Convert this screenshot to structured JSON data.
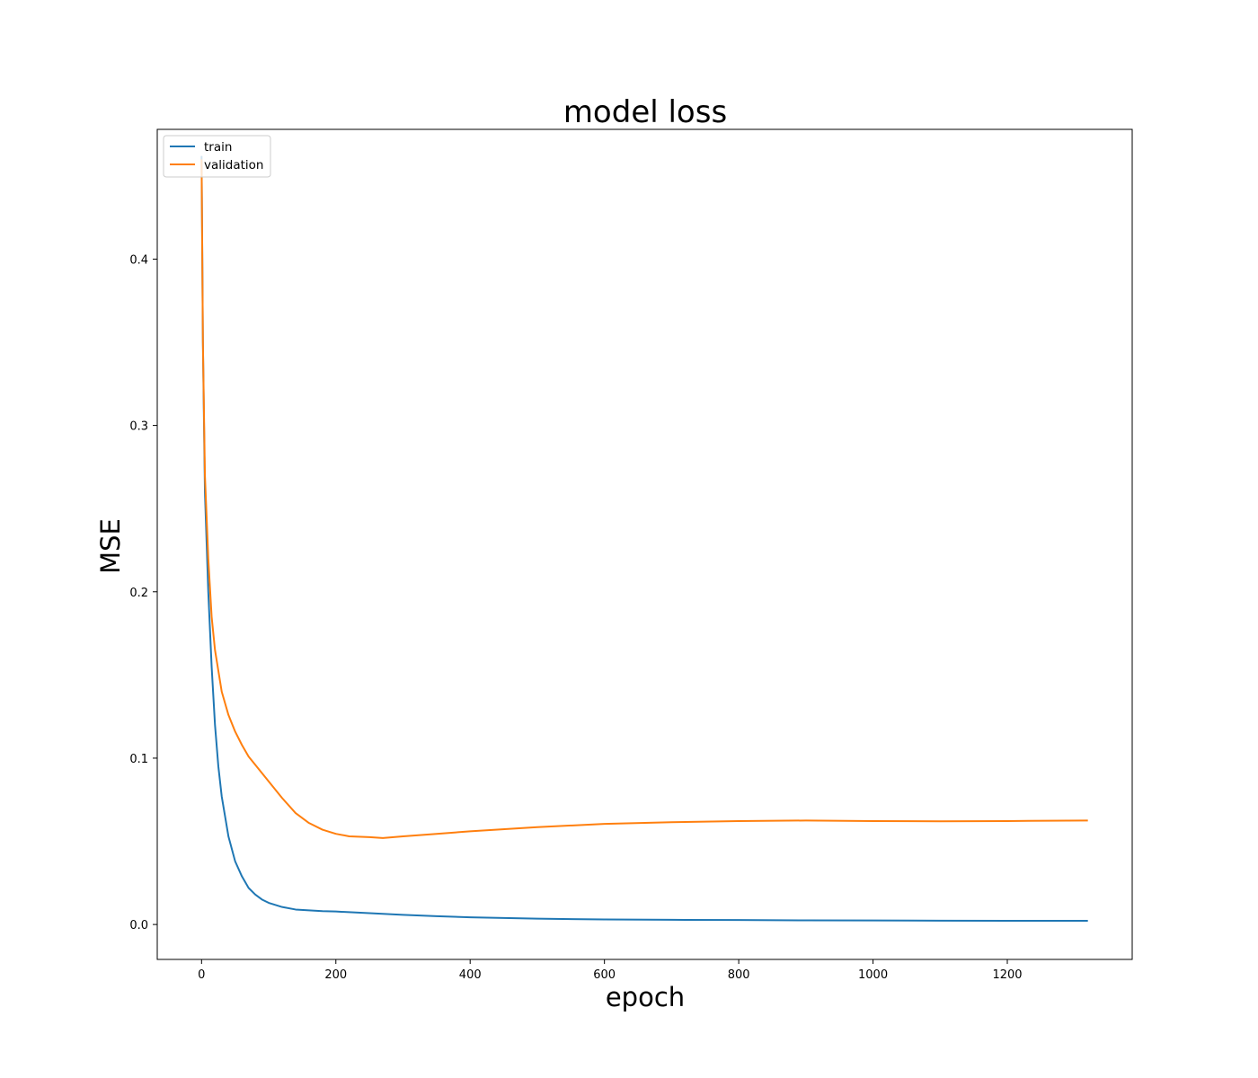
{
  "chart_data": {
    "type": "line",
    "title": "model loss",
    "xlabel": "epoch",
    "ylabel": "MSE",
    "xlim": [
      -66,
      1386
    ],
    "ylim": [
      -0.021,
      0.478
    ],
    "xticks": [
      0,
      200,
      400,
      600,
      800,
      1000,
      1200
    ],
    "yticks": [
      0.0,
      0.1,
      0.2,
      0.3,
      0.4
    ],
    "ytick_labels": [
      "0.0",
      "0.1",
      "0.2",
      "0.3",
      "0.4"
    ],
    "grid": false,
    "legend": "top-left",
    "series": [
      {
        "name": "train",
        "color": "#1f77b4",
        "x": [
          0,
          2,
          5,
          10,
          15,
          20,
          25,
          30,
          40,
          50,
          60,
          70,
          80,
          90,
          100,
          120,
          140,
          160,
          180,
          200,
          250,
          300,
          350,
          400,
          500,
          600,
          700,
          800,
          900,
          1000,
          1100,
          1200,
          1320
        ],
        "y": [
          0.462,
          0.35,
          0.26,
          0.2,
          0.155,
          0.12,
          0.095,
          0.077,
          0.053,
          0.038,
          0.029,
          0.022,
          0.018,
          0.015,
          0.013,
          0.0105,
          0.009,
          0.0085,
          0.008,
          0.0078,
          0.0068,
          0.0058,
          0.005,
          0.0043,
          0.0035,
          0.003,
          0.0028,
          0.0027,
          0.0025,
          0.0024,
          0.0023,
          0.0022,
          0.0022
        ]
      },
      {
        "name": "validation",
        "color": "#ff7f0e",
        "x": [
          0,
          2,
          5,
          10,
          15,
          20,
          30,
          40,
          50,
          60,
          70,
          80,
          100,
          120,
          140,
          160,
          180,
          200,
          220,
          250,
          270,
          300,
          350,
          400,
          500,
          600,
          700,
          800,
          900,
          1000,
          1100,
          1200,
          1320
        ],
        "y": [
          0.46,
          0.35,
          0.27,
          0.22,
          0.185,
          0.165,
          0.14,
          0.126,
          0.116,
          0.108,
          0.101,
          0.096,
          0.086,
          0.076,
          0.067,
          0.061,
          0.057,
          0.0545,
          0.053,
          0.0525,
          0.052,
          0.053,
          0.0545,
          0.056,
          0.0585,
          0.0605,
          0.0615,
          0.0622,
          0.0625,
          0.0622,
          0.062,
          0.0622,
          0.0625
        ]
      }
    ]
  }
}
